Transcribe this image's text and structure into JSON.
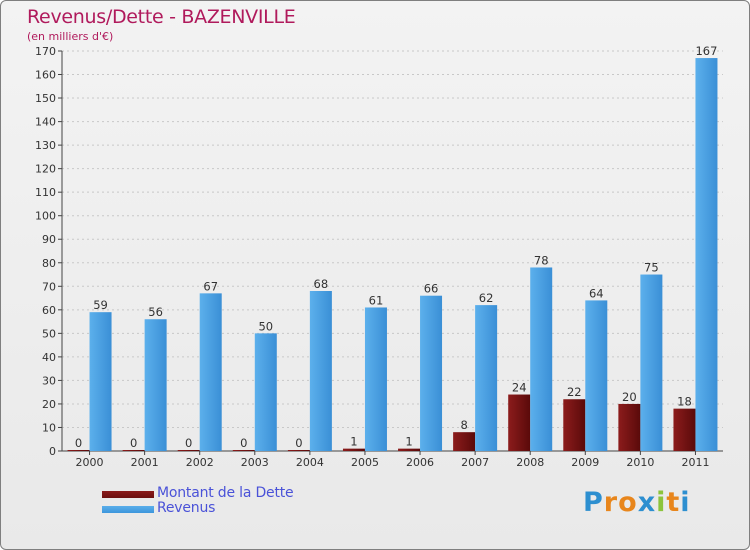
{
  "title": "Revenus/Dette - BAZENVILLE",
  "subtitle": "(en milliers d'€)",
  "chart_data": {
    "type": "bar",
    "title": "Revenus/Dette - BAZENVILLE",
    "ylabel": "(en milliers d'€)",
    "categories": [
      "2000",
      "2001",
      "2002",
      "2003",
      "2004",
      "2005",
      "2006",
      "2007",
      "2008",
      "2009",
      "2010",
      "2011"
    ],
    "series": [
      {
        "name": "Montant de la Dette",
        "color": "#6b0f0f",
        "values": [
          0,
          0,
          0,
          0,
          0,
          1,
          1,
          8,
          24,
          22,
          20,
          18
        ]
      },
      {
        "name": "Revenus",
        "color": "#3d96dc",
        "values": [
          59,
          56,
          67,
          50,
          68,
          61,
          66,
          62,
          78,
          64,
          75,
          167
        ]
      }
    ],
    "ylim": [
      0,
      170
    ],
    "yticks": [
      0,
      10,
      20,
      30,
      40,
      50,
      60,
      70,
      80,
      90,
      100,
      110,
      120,
      130,
      140,
      150,
      160,
      170
    ],
    "grid": true
  },
  "legend": [
    {
      "label": "Montant de la Dette",
      "color": "#6b0f0f"
    },
    {
      "label": "Revenus",
      "color": "#3d96dc"
    }
  ],
  "logo": {
    "letters": [
      "P",
      "r",
      "o",
      "x",
      "i",
      "t",
      "i"
    ],
    "colors": [
      "#2d8fd0",
      "#e8861c",
      "#e8861c",
      "#2d8fd0",
      "#8cc43c",
      "#e8861c",
      "#2d8fd0"
    ]
  }
}
